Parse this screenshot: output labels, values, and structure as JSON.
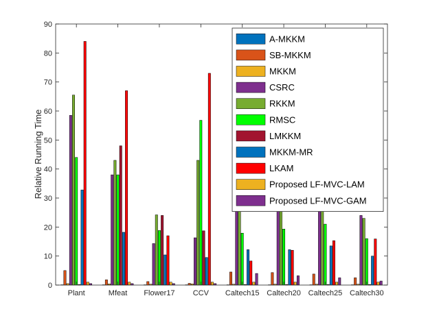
{
  "chart_data": {
    "type": "bar",
    "ylabel": "Relative Running Time",
    "xlabel": "",
    "ylim": [
      0,
      90
    ],
    "yticks": [
      0,
      10,
      20,
      30,
      40,
      50,
      60,
      70,
      80,
      90
    ],
    "grid": false,
    "legend_position": "top-right",
    "categories": [
      "Plant",
      "Mfeat",
      "Flower17",
      "CCV",
      "Caltech15",
      "Caltech20",
      "Caltech25",
      "Caltech30"
    ],
    "series": [
      {
        "name": "A-MKKM",
        "color": "#0072BD",
        "values": [
          0.1,
          0.1,
          0.1,
          0.1,
          0.1,
          0.1,
          0.1,
          0.1
        ]
      },
      {
        "name": "SB-MKKM",
        "color": "#D95319",
        "values": [
          5.0,
          1.8,
          1.2,
          0.6,
          4.5,
          4.3,
          3.8,
          2.5
        ]
      },
      {
        "name": "MKKM",
        "color": "#EDB120",
        "values": [
          0.5,
          0.4,
          0.3,
          0.4,
          0.3,
          0.3,
          0.3,
          0.3
        ]
      },
      {
        "name": "CSRC",
        "color": "#7E2F8E",
        "values": [
          58.5,
          38.0,
          14.3,
          16.3,
          31.0,
          32.0,
          34.5,
          24.0
        ]
      },
      {
        "name": "RKKM",
        "color": "#77AC30",
        "values": [
          65.5,
          43.0,
          24.2,
          43.0,
          29.0,
          30.0,
          32.0,
          23.0
        ]
      },
      {
        "name": "RMSC",
        "color": "#00FF00",
        "values": [
          44.0,
          38.0,
          18.8,
          56.8,
          17.9,
          19.3,
          21.0,
          16.0
        ]
      },
      {
        "name": "LMKKM",
        "color": "#A2142F",
        "values": [
          0.2,
          48.0,
          24.0,
          18.7,
          0.2,
          0.2,
          0.2,
          0.2
        ]
      },
      {
        "name": "MKKM-MR",
        "color": "#0072BD",
        "values": [
          32.8,
          18.2,
          10.4,
          9.5,
          12.2,
          12.2,
          13.5,
          10.0
        ]
      },
      {
        "name": "LKAM",
        "color": "#FF0000",
        "values": [
          84.0,
          67.0,
          17.0,
          73.0,
          8.3,
          12.0,
          15.3,
          15.9
        ]
      },
      {
        "name": "Proposed LF-MVC-LAM",
        "color": "#EDB120",
        "values": [
          1.0,
          1.0,
          1.0,
          1.0,
          1.0,
          1.0,
          1.0,
          1.0
        ]
      },
      {
        "name": "Proposed LF-MVC-GAM",
        "color": "#7E2F8E",
        "values": [
          0.5,
          0.5,
          0.5,
          0.5,
          4.0,
          3.2,
          2.5,
          1.4
        ]
      }
    ]
  }
}
